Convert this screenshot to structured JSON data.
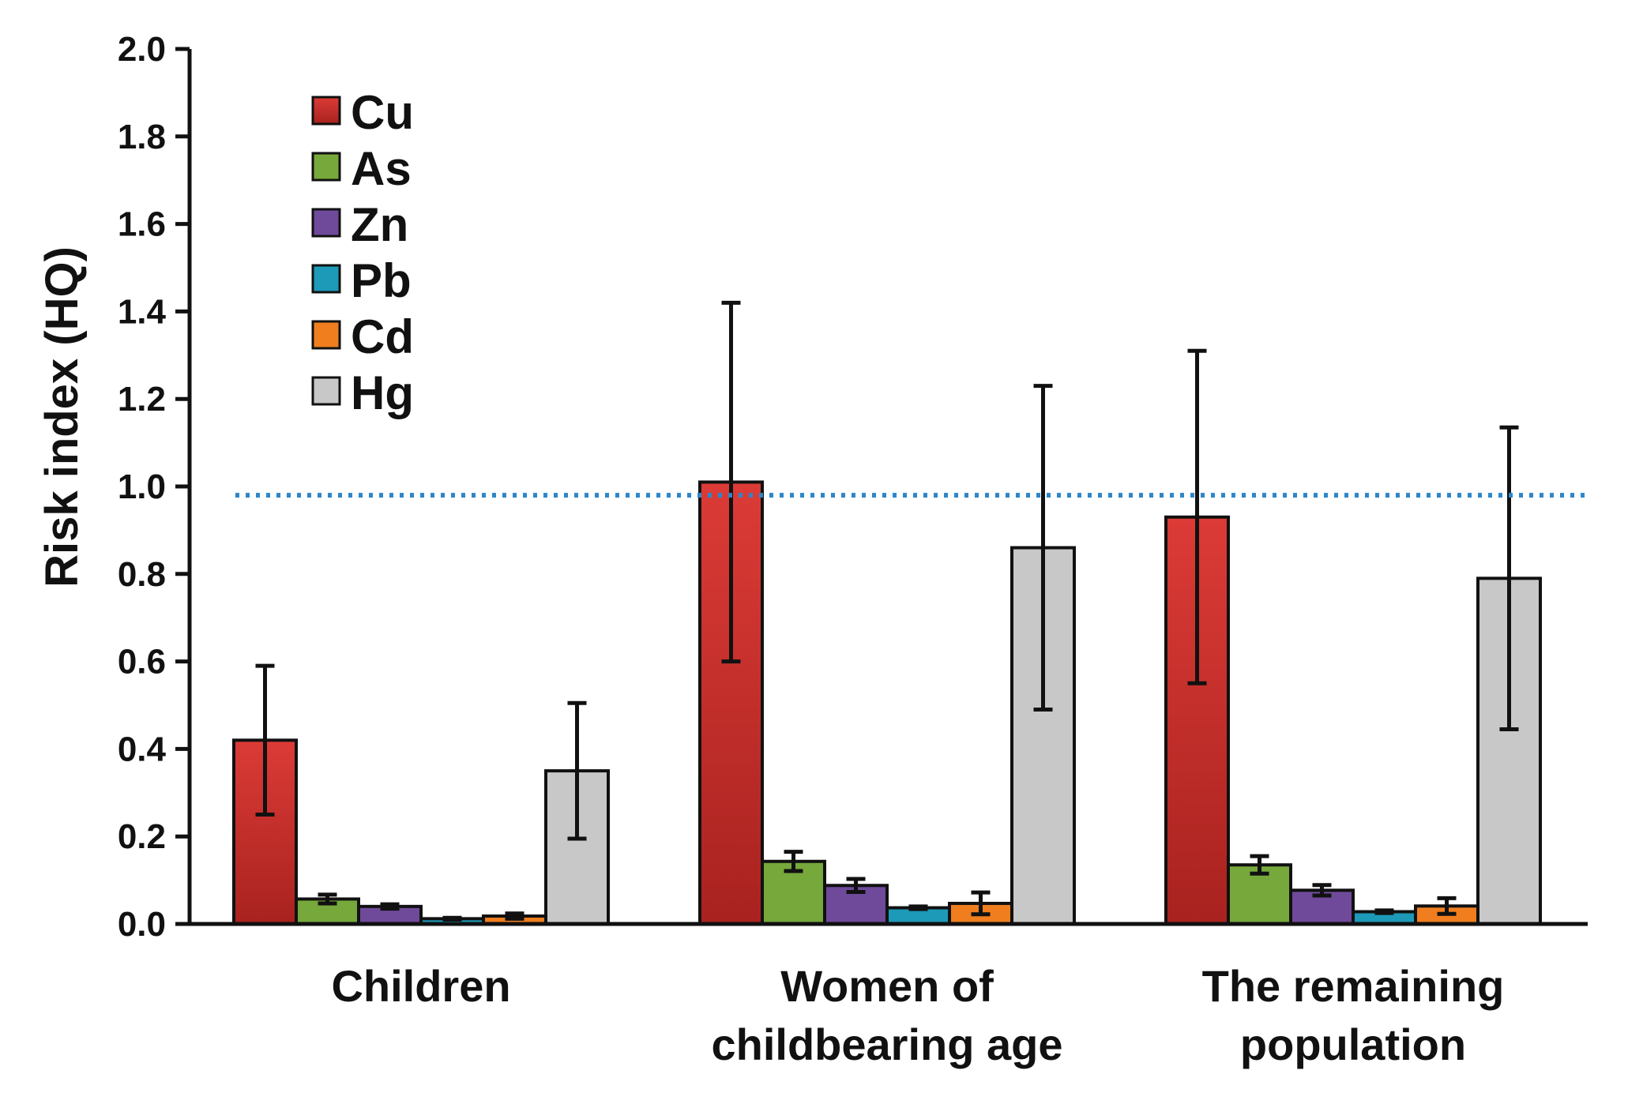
{
  "chart_data": {
    "type": "bar",
    "title": "",
    "xlabel": "",
    "ylabel": "Risk index (HQ)",
    "ylim": [
      0,
      2.0
    ],
    "yticks": [
      "0.0",
      "0.2",
      "0.4",
      "0.6",
      "0.8",
      "1.0",
      "1.2",
      "1.4",
      "1.6",
      "1.8",
      "2.0"
    ],
    "categories": [
      [
        "Children"
      ],
      [
        "Women of",
        "childbearing age"
      ],
      [
        "The remaining",
        "population"
      ]
    ],
    "series": [
      {
        "name": "Cu",
        "color": "#c8312f",
        "values": [
          0.42,
          1.01,
          0.93
        ],
        "errors": [
          0.17,
          0.41,
          0.38
        ]
      },
      {
        "name": "As",
        "color": "#77a83c",
        "values": [
          0.057,
          0.143,
          0.135
        ],
        "errors": [
          0.01,
          0.022,
          0.02
        ]
      },
      {
        "name": "Zn",
        "color": "#6f4a9a",
        "values": [
          0.04,
          0.088,
          0.077
        ],
        "errors": [
          0.005,
          0.015,
          0.012
        ]
      },
      {
        "name": "Pb",
        "color": "#1d9ab8",
        "values": [
          0.012,
          0.037,
          0.028
        ],
        "errors": [
          0.002,
          0.003,
          0.003
        ]
      },
      {
        "name": "Cd",
        "color": "#f07e1f",
        "values": [
          0.018,
          0.047,
          0.041
        ],
        "errors": [
          0.006,
          0.025,
          0.018
        ]
      },
      {
        "name": "Hg",
        "color": "#c8c8c8",
        "values": [
          0.35,
          0.86,
          0.79
        ],
        "errors": [
          0.155,
          0.37,
          0.345
        ]
      }
    ],
    "reference_line": {
      "y": 0.98,
      "style": "dotted",
      "color": "#2e86c9"
    },
    "legend": "top-left",
    "grid": false
  }
}
